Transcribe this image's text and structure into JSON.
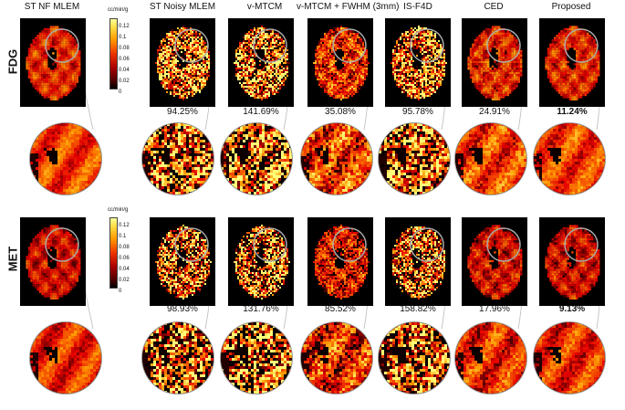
{
  "columns": [
    "ST NF MLEM",
    "ST Noisy MLEM",
    "v-MTCM",
    "v-MTCM + FWHM (3mm)",
    "IS-F4D",
    "CED",
    "Proposed"
  ],
  "rows": [
    {
      "label": "FDG",
      "percentages": [
        "",
        "94.25%",
        "141.69%",
        "35.08%",
        "95.78%",
        "24.91%",
        "11.24%"
      ],
      "colorbar": {
        "unit": "cc/min/g",
        "ticks": [
          "0.12",
          "0.1",
          "0.08",
          "0.06",
          "0.04",
          "0.02",
          "0"
        ]
      }
    },
    {
      "label": "MET",
      "percentages": [
        "",
        "98.93%",
        "131.76%",
        "85.52%",
        "158.82%",
        "17.96%",
        "9.13%"
      ],
      "colorbar": {
        "unit": "cc/min/g",
        "ticks": [
          "0.12",
          "0.1",
          "0.08",
          "0.06",
          "0.04",
          "0.02",
          "0"
        ]
      }
    }
  ],
  "best_column_index": 6,
  "colors": {
    "hot_dark": "#3a0000",
    "hot_mid": "#d82a00",
    "hot_bright": "#ffb000",
    "hot_white": "#ffff80",
    "zoom_ring": "#aaaaaa"
  },
  "noise_levels": [
    0.15,
    0.9,
    1.0,
    0.45,
    0.9,
    0.25,
    0.2
  ]
}
